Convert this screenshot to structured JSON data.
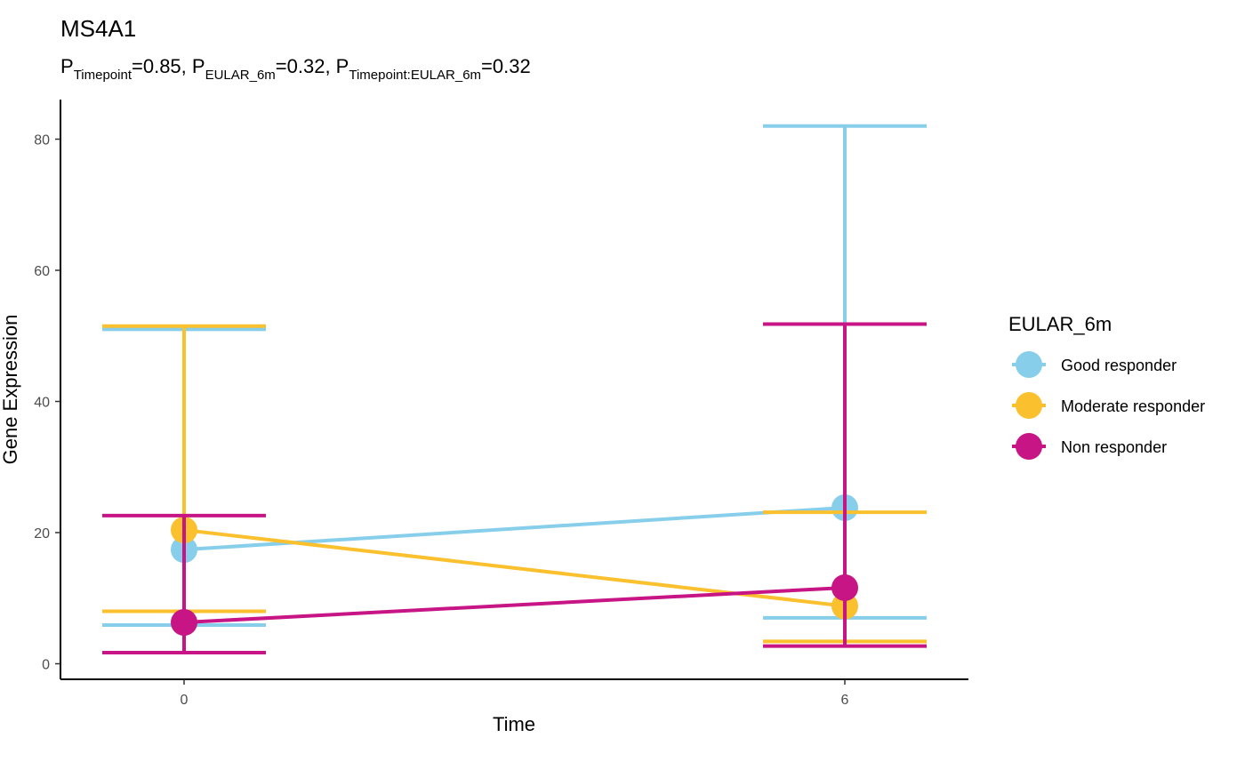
{
  "chart_data": {
    "type": "line",
    "title": "MS4A1",
    "subtitle": {
      "parts": [
        {
          "main": "P",
          "sub": "Timepoint",
          "rest": "=0.85, "
        },
        {
          "main": "P",
          "sub": "EULAR_6m",
          "rest": "=0.32, "
        },
        {
          "main": "P",
          "sub": "Timepoint:EULAR_6m",
          "rest": "=0.32"
        }
      ]
    },
    "xlabel": "Time",
    "ylabel": "Gene Expression",
    "x": [
      0,
      6
    ],
    "x_ticks": [
      "0",
      "6"
    ],
    "y_ticks": [
      "0",
      "20",
      "40",
      "60",
      "80"
    ],
    "ylim": [
      -2.5,
      86
    ],
    "grid": false,
    "legend": {
      "title": "EULAR_6m",
      "position": "right"
    },
    "series": [
      {
        "name": "Good responder",
        "color": "#87CEEB",
        "mean": [
          17.4,
          23.8
        ],
        "lower": [
          5.9,
          7.0
        ],
        "upper": [
          51.0,
          82.0
        ]
      },
      {
        "name": "Moderate responder",
        "color": "#FBC02D",
        "mean": [
          20.4,
          8.8
        ],
        "lower": [
          8.0,
          3.4
        ],
        "upper": [
          51.5,
          23.1
        ]
      },
      {
        "name": "Non responder",
        "color": "#C71585",
        "mean": [
          6.3,
          11.6
        ],
        "lower": [
          1.7,
          2.7
        ],
        "upper": [
          22.6,
          51.8
        ]
      }
    ]
  }
}
